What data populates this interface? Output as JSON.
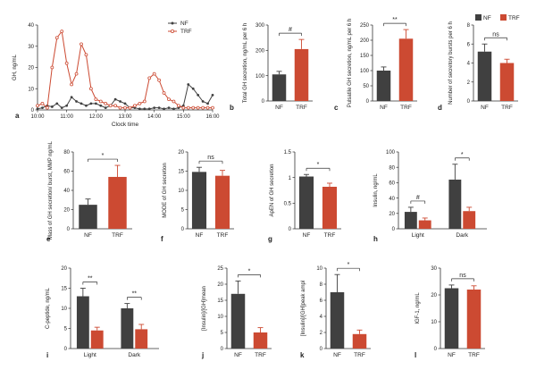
{
  "colors": {
    "nf": "#404040",
    "trf": "#cc4a32",
    "axis": "#333333"
  },
  "chart_data": [
    {
      "panel": "a",
      "type": "line",
      "ylabel": "GH, ng/mL",
      "xlabel": "Clock time",
      "ylim": [
        0,
        40
      ],
      "yticks": [
        0,
        10,
        20,
        30,
        40
      ],
      "xlim": [
        0,
        360
      ],
      "xtick_pos": [
        0,
        60,
        120,
        180,
        240,
        300,
        360
      ],
      "xtick_labels": [
        "10:00",
        "11:00",
        "12:00",
        "13:00",
        "14:00",
        "15:00",
        "16:00"
      ],
      "legend": [
        "NF",
        "TRF"
      ],
      "series": [
        {
          "name": "NF",
          "x": [
            0,
            10,
            20,
            30,
            40,
            50,
            60,
            70,
            80,
            90,
            100,
            110,
            120,
            130,
            140,
            150,
            160,
            170,
            180,
            190,
            200,
            210,
            220,
            230,
            240,
            250,
            260,
            270,
            280,
            290,
            300,
            310,
            320,
            330,
            340,
            350,
            360
          ],
          "y": [
            0.5,
            1,
            2,
            1.5,
            3,
            1,
            2,
            6,
            4,
            3,
            2,
            3,
            3,
            2,
            1,
            2,
            5,
            4,
            3,
            1,
            1,
            0.5,
            0.5,
            0.5,
            1,
            1,
            0.5,
            1,
            0.5,
            1,
            2,
            12,
            10,
            7,
            4,
            3,
            7
          ]
        },
        {
          "name": "TRF",
          "x": [
            0,
            10,
            20,
            30,
            40,
            50,
            60,
            70,
            80,
            90,
            100,
            110,
            120,
            130,
            140,
            150,
            160,
            170,
            180,
            190,
            200,
            210,
            220,
            230,
            240,
            250,
            260,
            270,
            280,
            290,
            300,
            310,
            320,
            330,
            340,
            350,
            360
          ],
          "y": [
            2,
            3,
            1,
            20,
            34,
            37,
            22,
            12,
            17,
            31,
            26,
            10,
            5,
            4,
            3,
            2,
            2,
            1,
            1,
            1,
            2,
            3,
            4,
            15,
            17,
            14,
            8,
            5,
            4,
            2,
            1,
            1,
            1,
            1,
            1,
            1,
            1
          ]
        }
      ]
    },
    {
      "panel": "b",
      "type": "bar",
      "ylabel": "Total GH secretion, ng/mL per 6 h",
      "categories": [
        "NF",
        "TRF"
      ],
      "values": [
        105,
        205
      ],
      "errors": [
        12,
        38
      ],
      "ylim": [
        0,
        300
      ],
      "yticks": [
        0,
        100,
        200,
        300
      ],
      "sig": "#"
    },
    {
      "panel": "c",
      "type": "bar",
      "ylabel": "Pulsatile GH secretion, ng/mL per 6 h",
      "categories": [
        "NF",
        "TRF"
      ],
      "values": [
        100,
        205
      ],
      "errors": [
        12,
        30
      ],
      "ylim": [
        0,
        250
      ],
      "yticks": [
        0,
        50,
        100,
        150,
        200,
        250
      ],
      "sig": "**"
    },
    {
      "panel": "d",
      "type": "bar",
      "ylabel": "Number of secretory bursts per 6 h",
      "categories": [
        "NF",
        "TRF"
      ],
      "values": [
        5.2,
        4.0
      ],
      "errors": [
        0.8,
        0.4
      ],
      "ylim": [
        0,
        8
      ],
      "yticks": [
        0,
        2,
        4,
        6,
        8
      ],
      "sig": "ns",
      "legend": [
        "NF",
        "TRF"
      ]
    },
    {
      "panel": "e",
      "type": "bar",
      "ylabel": "Mass of GH secretion/ burst, MMP ng/mL",
      "categories": [
        "NF",
        "TRF"
      ],
      "values": [
        25,
        54
      ],
      "errors": [
        6,
        12
      ],
      "ylim": [
        0,
        80
      ],
      "yticks": [
        0,
        20,
        40,
        60,
        80
      ],
      "sig": "*"
    },
    {
      "panel": "f",
      "type": "bar",
      "ylabel": "MODE of GH secretion",
      "categories": [
        "NF",
        "TRF"
      ],
      "values": [
        14.8,
        13.8
      ],
      "errors": [
        1.2,
        1.4
      ],
      "ylim": [
        0,
        20
      ],
      "yticks": [
        0,
        5,
        10,
        15,
        20
      ],
      "sig": "ns"
    },
    {
      "panel": "g",
      "type": "bar",
      "ylabel": "ApEN of GH secretion",
      "categories": [
        "NF",
        "TRF"
      ],
      "values": [
        1.02,
        0.82
      ],
      "errors": [
        0.04,
        0.07
      ],
      "ylim": [
        0,
        1.5
      ],
      "yticks": [
        0.0,
        0.5,
        1.0,
        1.5
      ],
      "sig": "*"
    },
    {
      "panel": "h",
      "type": "bar",
      "ylabel": "Insulin, ng/mL",
      "groups": [
        "Light",
        "Dark"
      ],
      "series_values": [
        [
          22,
          64
        ],
        [
          11,
          23
        ]
      ],
      "errors": [
        [
          6,
          20
        ],
        [
          3,
          5
        ]
      ],
      "ylim": [
        0,
        100
      ],
      "yticks": [
        0,
        20,
        40,
        60,
        80,
        100
      ],
      "sig": [
        "#",
        "*"
      ]
    },
    {
      "panel": "i",
      "type": "bar",
      "ylabel": "C-peptide, ng/mL",
      "groups": [
        "Light",
        "Dark"
      ],
      "series_values": [
        [
          13,
          10
        ],
        [
          4.5,
          4.8
        ]
      ],
      "errors": [
        [
          2,
          1.2
        ],
        [
          0.8,
          1.2
        ]
      ],
      "ylim": [
        0,
        20
      ],
      "yticks": [
        0,
        5,
        10,
        15,
        20
      ],
      "sig": [
        "**",
        "**"
      ]
    },
    {
      "panel": "j",
      "type": "bar",
      "ylabel": "[Insulin]/[GH]mean",
      "categories": [
        "NF",
        "TRF"
      ],
      "values": [
        17,
        5
      ],
      "errors": [
        4,
        1.5
      ],
      "ylim": [
        0,
        25
      ],
      "yticks": [
        0,
        5,
        10,
        15,
        20,
        25
      ],
      "sig": "*"
    },
    {
      "panel": "k",
      "type": "bar",
      "ylabel": "[Insulin]/[GH]peak ampl",
      "categories": [
        "NF",
        "TRF"
      ],
      "values": [
        7,
        1.8
      ],
      "errors": [
        2.2,
        0.5
      ],
      "ylim": [
        0,
        10
      ],
      "yticks": [
        0,
        2,
        4,
        6,
        8,
        10
      ],
      "sig": "*"
    },
    {
      "panel": "l",
      "type": "bar",
      "ylabel": "IGF-1, ng/mL",
      "categories": [
        "NF",
        "TRF"
      ],
      "values": [
        22.5,
        22
      ],
      "errors": [
        1.2,
        1.4
      ],
      "ylim": [
        0,
        30
      ],
      "yticks": [
        0,
        10,
        20,
        30
      ],
      "sig": "ns"
    }
  ]
}
